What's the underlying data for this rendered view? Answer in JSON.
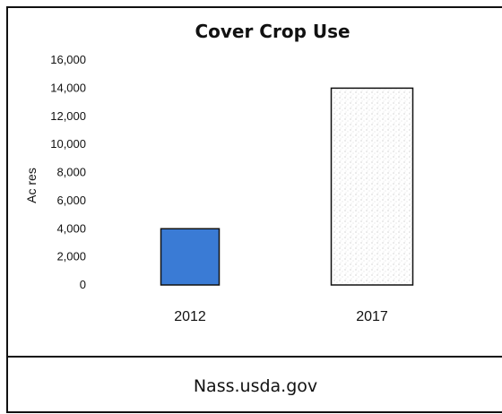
{
  "chart_data": {
    "type": "bar",
    "title": "Cover Crop Use",
    "ylabel": "Ac res",
    "xlabel": "",
    "categories": [
      "2012",
      "2017"
    ],
    "values": [
      4000,
      14000
    ],
    "ylim": [
      0,
      16000
    ],
    "yticks": [
      "16,000",
      "14,000",
      "12,000",
      "10,000",
      "8,000",
      "6,000",
      "4,000",
      "2,000",
      "0"
    ],
    "grid": false,
    "legend": "none"
  },
  "footer": {
    "source": "Nass.usda.gov"
  },
  "colors": {
    "bar_2012": "#3a7bd5",
    "bar_2017": "#ffffff",
    "frame": "#111111"
  }
}
